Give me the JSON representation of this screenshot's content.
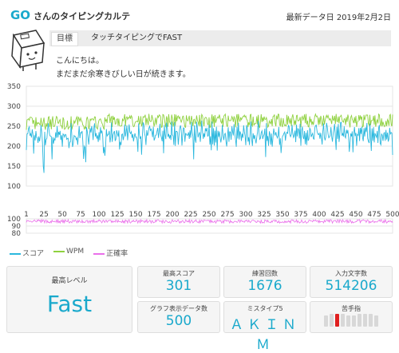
{
  "header": {
    "user_prefix": "GO",
    "user_suffix": "さんのタイピングカルテ",
    "last_date": "最新データ日 2019年2月2日"
  },
  "goal": {
    "label": "目標",
    "text": "タッチタイピングでFAST"
  },
  "greeting": {
    "line1": "こんにちは。",
    "line2": "まだまだ余寒きびしい日が続きます。"
  },
  "chart_data": [
    {
      "type": "line",
      "y_ticks": [
        "350",
        "300",
        "250",
        "200",
        "150",
        "100"
      ],
      "ylim": [
        100,
        350
      ],
      "xlim": [
        1,
        500
      ],
      "series": [
        {
          "name": "スコア",
          "color": "#2bb8de",
          "base": 236
        },
        {
          "name": "WPM",
          "color": "#8fd13f",
          "base": 258
        }
      ],
      "notable": [
        {
          "x": 25,
          "score": 133
        },
        {
          "x": 24,
          "score": 150
        }
      ]
    },
    {
      "type": "line",
      "y_ticks": [
        "100",
        "90",
        "80"
      ],
      "ylim": [
        80,
        100
      ],
      "x_ticks": [
        "1",
        "25",
        "50",
        "75",
        "100",
        "125",
        "150",
        "175",
        "200",
        "225",
        "250",
        "275",
        "300",
        "325",
        "350",
        "375",
        "400",
        "425",
        "450",
        "475",
        "500"
      ],
      "series": [
        {
          "name": "正確率",
          "color": "#ea6fea",
          "base": 97
        }
      ]
    }
  ],
  "legend": [
    {
      "name": "スコア",
      "color": "#2bb8de"
    },
    {
      "name": "WPM",
      "color": "#8fd13f"
    },
    {
      "name": "正確率",
      "color": "#ea6fea"
    }
  ],
  "stats": {
    "max_level": {
      "label": "最高レベル",
      "value": "Fast"
    },
    "max_score": {
      "label": "最高スコア",
      "value": "301"
    },
    "practice_count": {
      "label": "練習回数",
      "value": "1676"
    },
    "chars_typed": {
      "label": "入力文字数",
      "value": "514206"
    },
    "graph_count": {
      "label": "グラフ表示データ数",
      "value": "500"
    },
    "mistype5": {
      "label": "ミスタイプ5",
      "value": "ＡＫＩＮＭ"
    },
    "weak_finger": {
      "label": "苦手指",
      "bars": [
        0,
        0,
        1,
        0,
        0,
        0,
        0,
        0,
        0,
        0
      ]
    }
  }
}
